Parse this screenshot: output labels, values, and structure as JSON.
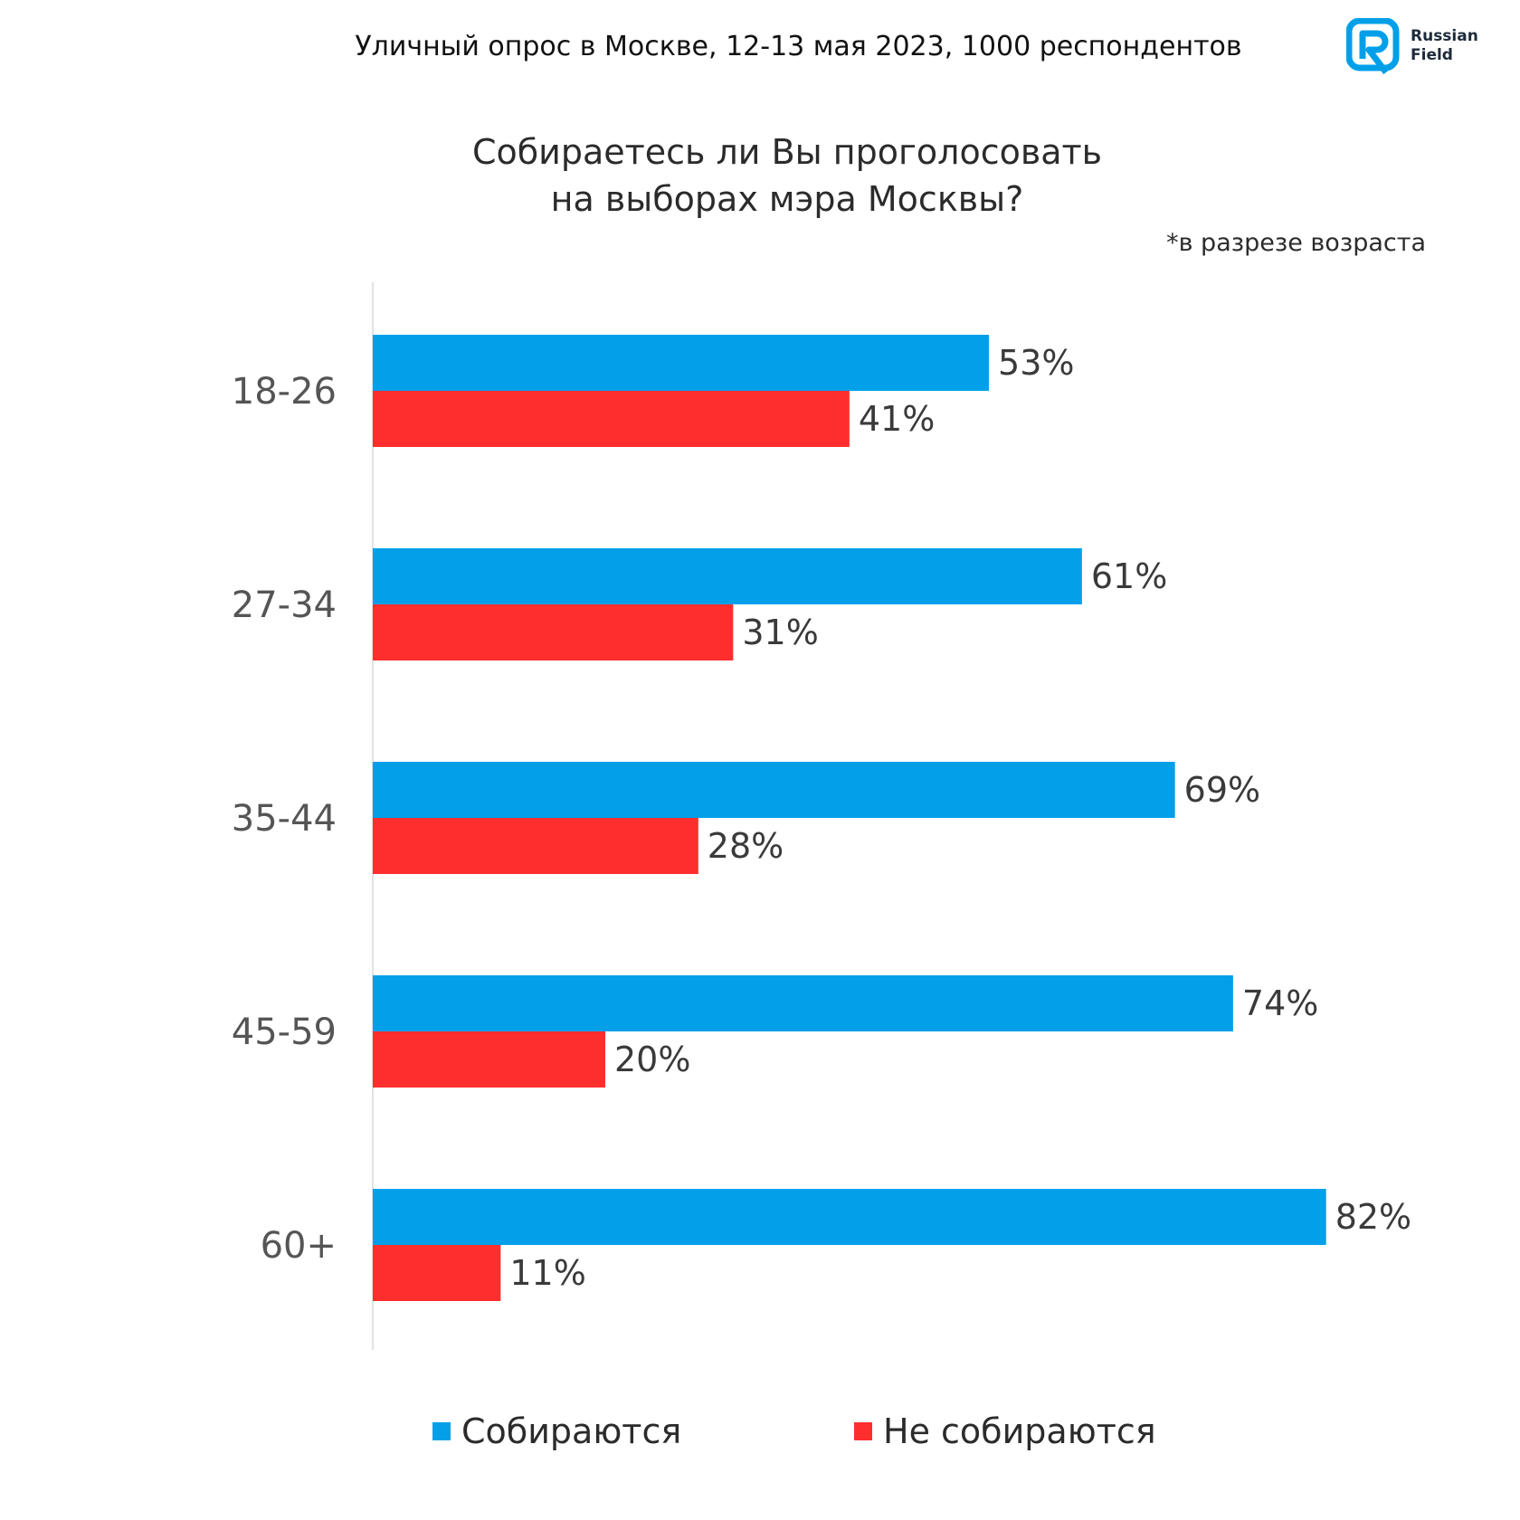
{
  "header": {
    "survey_info": "Уличный опрос в Москве, 12-13 мая 2023, 1000 респондентов"
  },
  "logo": {
    "line1": "Russian",
    "line2": "Field"
  },
  "question": {
    "line1": "Собираетесь ли Вы проголосовать",
    "line2": "на выборах мэра Москвы?"
  },
  "note": "*в разрезе возраста",
  "colors": {
    "going": "#03a0e9",
    "not_going": "#ff2e2e",
    "axis": "#d9d9d9",
    "label_text": "#3a3a3a",
    "category_text": "#555555"
  },
  "chart_data": {
    "type": "bar",
    "orientation": "horizontal",
    "title": "Собираетесь ли Вы проголосовать на выборах мэра Москвы?",
    "subtitle": "*в разрезе возраста",
    "xlabel": "",
    "ylabel": "",
    "xlim": [
      0,
      100
    ],
    "grid": false,
    "legend_position": "bottom",
    "categories": [
      "18-26",
      "27-34",
      "35-44",
      "45-59",
      "60+"
    ],
    "series": [
      {
        "name": "Собираются",
        "color": "#03a0e9",
        "values": [
          53,
          61,
          69,
          74,
          82
        ],
        "labels": [
          "53%",
          "61%",
          "69%",
          "74%",
          "82%"
        ]
      },
      {
        "name": "Не собираются",
        "color": "#ff2e2e",
        "values": [
          41,
          31,
          28,
          20,
          11
        ],
        "labels": [
          "41%",
          "31%",
          "28%",
          "20%",
          "11%"
        ]
      }
    ]
  },
  "legend": {
    "items": [
      {
        "label": "Собираются",
        "color": "#03a0e9"
      },
      {
        "label": "Не собираются",
        "color": "#ff2e2e"
      }
    ]
  }
}
